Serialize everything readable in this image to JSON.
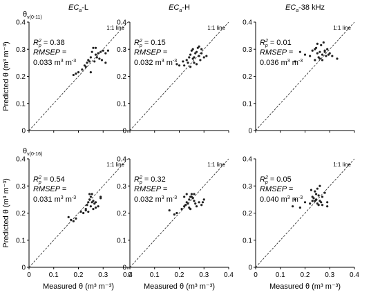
{
  "figure": {
    "row_labels": [
      {
        "main": "θ",
        "sub": "v(0-11)"
      },
      {
        "main": "θ",
        "sub": "v(0-16)"
      }
    ],
    "col_titles": [
      {
        "ec": "EC",
        "sub": "a",
        "rest": "-L"
      },
      {
        "ec": "EC",
        "sub": "a",
        "rest": "-H"
      },
      {
        "ec": "EC",
        "sub": "a",
        "rest": "-38 kHz"
      }
    ],
    "y_axis_label": "Predicted θ (m³ m⁻³)",
    "x_axis_label": "Measured θ (m³ m⁻³)",
    "one_to_one_label": "1:1 line",
    "r2_label": "R",
    "r2_sup": "2",
    "r2_sub": "p",
    "rmsep_label": "RMSEP =",
    "unit_text": "m",
    "unit_sup1": "3",
    "unit_mid": " m",
    "unit_sup2": "-3",
    "colors": {
      "point": "#222222",
      "axis": "#000000",
      "diag": "#333333"
    }
  },
  "chart_data": [
    {
      "type": "scatter",
      "panel": "a",
      "row": 0,
      "col": 0,
      "xlim": [
        0,
        0.4
      ],
      "ylim": [
        0,
        0.4
      ],
      "xticks": [
        "0",
        "0.1",
        "0.2",
        "0.3",
        "0.4"
      ],
      "yticks": [
        "0",
        "0.1",
        "0.2",
        "0.3",
        "0.4"
      ],
      "r2": "0.38",
      "rmsep": "0.033",
      "points": [
        [
          0.18,
          0.205
        ],
        [
          0.19,
          0.21
        ],
        [
          0.2,
          0.215
        ],
        [
          0.215,
          0.225
        ],
        [
          0.225,
          0.24
        ],
        [
          0.23,
          0.235
        ],
        [
          0.235,
          0.25
        ],
        [
          0.24,
          0.26
        ],
        [
          0.245,
          0.255
        ],
        [
          0.25,
          0.27
        ],
        [
          0.255,
          0.29
        ],
        [
          0.26,
          0.305
        ],
        [
          0.27,
          0.305
        ],
        [
          0.27,
          0.28
        ],
        [
          0.275,
          0.27
        ],
        [
          0.28,
          0.285
        ],
        [
          0.285,
          0.265
        ],
        [
          0.29,
          0.29
        ],
        [
          0.295,
          0.26
        ],
        [
          0.3,
          0.295
        ],
        [
          0.31,
          0.285
        ],
        [
          0.32,
          0.295
        ],
        [
          0.25,
          0.215
        ],
        [
          0.31,
          0.25
        ],
        [
          0.265,
          0.255
        ]
      ]
    },
    {
      "type": "scatter",
      "panel": "b",
      "row": 0,
      "col": 1,
      "xlim": [
        0,
        0.4
      ],
      "ylim": [
        0,
        0.4
      ],
      "xticks": [
        "0",
        "0.1",
        "0.2",
        "0.3",
        "0.4"
      ],
      "yticks": [
        "0",
        "0.1",
        "0.2",
        "0.3",
        "0.4"
      ],
      "r2": "0.15",
      "rmsep": "0.032",
      "points": [
        [
          0.19,
          0.245
        ],
        [
          0.2,
          0.24
        ],
        [
          0.215,
          0.255
        ],
        [
          0.22,
          0.24
        ],
        [
          0.23,
          0.26
        ],
        [
          0.235,
          0.25
        ],
        [
          0.24,
          0.27
        ],
        [
          0.245,
          0.28
        ],
        [
          0.25,
          0.295
        ],
        [
          0.255,
          0.3
        ],
        [
          0.26,
          0.27
        ],
        [
          0.265,
          0.285
        ],
        [
          0.27,
          0.29
        ],
        [
          0.275,
          0.305
        ],
        [
          0.28,
          0.275
        ],
        [
          0.285,
          0.26
        ],
        [
          0.29,
          0.285
        ],
        [
          0.3,
          0.27
        ],
        [
          0.31,
          0.275
        ],
        [
          0.26,
          0.25
        ],
        [
          0.27,
          0.245
        ],
        [
          0.28,
          0.31
        ],
        [
          0.245,
          0.235
        ],
        [
          0.29,
          0.3
        ],
        [
          0.255,
          0.265
        ]
      ]
    },
    {
      "type": "scatter",
      "panel": "c",
      "row": 0,
      "col": 2,
      "xlim": [
        0,
        0.4
      ],
      "ylim": [
        0,
        0.4
      ],
      "xticks": [
        "0",
        "0.1",
        "0.2",
        "0.3",
        "0.4"
      ],
      "yticks": [
        "0",
        "0.1",
        "0.2",
        "0.3",
        "0.4"
      ],
      "r2": "0.01",
      "rmsep": "0.036",
      "points": [
        [
          0.16,
          0.255
        ],
        [
          0.18,
          0.29
        ],
        [
          0.2,
          0.28
        ],
        [
          0.22,
          0.275
        ],
        [
          0.23,
          0.295
        ],
        [
          0.24,
          0.3
        ],
        [
          0.245,
          0.305
        ],
        [
          0.25,
          0.285
        ],
        [
          0.255,
          0.27
        ],
        [
          0.26,
          0.29
        ],
        [
          0.265,
          0.315
        ],
        [
          0.27,
          0.28
        ],
        [
          0.275,
          0.325
        ],
        [
          0.28,
          0.29
        ],
        [
          0.285,
          0.275
        ],
        [
          0.29,
          0.3
        ],
        [
          0.295,
          0.28
        ],
        [
          0.3,
          0.285
        ],
        [
          0.31,
          0.275
        ],
        [
          0.33,
          0.265
        ],
        [
          0.26,
          0.265
        ],
        [
          0.24,
          0.26
        ],
        [
          0.27,
          0.26
        ],
        [
          0.25,
          0.32
        ],
        [
          0.28,
          0.295
        ]
      ]
    },
    {
      "type": "scatter",
      "panel": "d",
      "row": 1,
      "col": 0,
      "xlim": [
        0,
        0.4
      ],
      "ylim": [
        0,
        0.4
      ],
      "xticks": [
        "0",
        "0.1",
        "0.2",
        "0.3",
        "0.4"
      ],
      "yticks": [
        "0",
        "0.1",
        "0.2",
        "0.3",
        "0.4"
      ],
      "r2": "0.54",
      "rmsep": "0.031",
      "points": [
        [
          0.16,
          0.185
        ],
        [
          0.17,
          0.175
        ],
        [
          0.18,
          0.17
        ],
        [
          0.19,
          0.18
        ],
        [
          0.21,
          0.205
        ],
        [
          0.22,
          0.2
        ],
        [
          0.23,
          0.215
        ],
        [
          0.235,
          0.23
        ],
        [
          0.24,
          0.24
        ],
        [
          0.245,
          0.25
        ],
        [
          0.25,
          0.26
        ],
        [
          0.255,
          0.27
        ],
        [
          0.26,
          0.245
        ],
        [
          0.265,
          0.235
        ],
        [
          0.27,
          0.22
        ],
        [
          0.28,
          0.225
        ],
        [
          0.29,
          0.26
        ],
        [
          0.29,
          0.255
        ],
        [
          0.245,
          0.27
        ],
        [
          0.25,
          0.225
        ],
        [
          0.24,
          0.205
        ],
        [
          0.255,
          0.24
        ],
        [
          0.26,
          0.215
        ],
        [
          0.23,
          0.21
        ],
        [
          0.27,
          0.24
        ]
      ]
    },
    {
      "type": "scatter",
      "panel": "e",
      "row": 1,
      "col": 1,
      "xlim": [
        0,
        0.4
      ],
      "ylim": [
        0,
        0.4
      ],
      "xticks": [
        "0",
        "0.1",
        "0.2",
        "0.3",
        "0.4"
      ],
      "yticks": [
        "0",
        "0.1",
        "0.2",
        "0.3",
        "0.4"
      ],
      "r2": "0.32",
      "rmsep": "0.032",
      "points": [
        [
          0.16,
          0.21
        ],
        [
          0.18,
          0.195
        ],
        [
          0.19,
          0.2
        ],
        [
          0.21,
          0.215
        ],
        [
          0.22,
          0.225
        ],
        [
          0.225,
          0.23
        ],
        [
          0.23,
          0.24
        ],
        [
          0.235,
          0.235
        ],
        [
          0.24,
          0.25
        ],
        [
          0.245,
          0.26
        ],
        [
          0.25,
          0.27
        ],
        [
          0.255,
          0.255
        ],
        [
          0.26,
          0.245
        ],
        [
          0.265,
          0.235
        ],
        [
          0.27,
          0.225
        ],
        [
          0.28,
          0.24
        ],
        [
          0.29,
          0.23
        ],
        [
          0.3,
          0.25
        ],
        [
          0.24,
          0.22
        ],
        [
          0.23,
          0.27
        ],
        [
          0.25,
          0.26
        ],
        [
          0.26,
          0.27
        ],
        [
          0.22,
          0.26
        ],
        [
          0.245,
          0.215
        ],
        [
          0.295,
          0.24
        ]
      ]
    },
    {
      "type": "scatter",
      "panel": "f",
      "row": 1,
      "col": 2,
      "xlim": [
        0,
        0.4
      ],
      "ylim": [
        0,
        0.4
      ],
      "xticks": [
        "0",
        "0.1",
        "0.2",
        "0.3",
        "0.4"
      ],
      "yticks": [
        "0",
        "0.1",
        "0.2",
        "0.3",
        "0.4"
      ],
      "r2": "0.05",
      "rmsep": "0.040",
      "points": [
        [
          0.15,
          0.225
        ],
        [
          0.16,
          0.25
        ],
        [
          0.18,
          0.22
        ],
        [
          0.2,
          0.24
        ],
        [
          0.22,
          0.235
        ],
        [
          0.225,
          0.285
        ],
        [
          0.23,
          0.26
        ],
        [
          0.235,
          0.255
        ],
        [
          0.24,
          0.28
        ],
        [
          0.245,
          0.27
        ],
        [
          0.25,
          0.29
        ],
        [
          0.255,
          0.265
        ],
        [
          0.26,
          0.245
        ],
        [
          0.265,
          0.24
        ],
        [
          0.27,
          0.23
        ],
        [
          0.28,
          0.275
        ],
        [
          0.29,
          0.24
        ],
        [
          0.29,
          0.225
        ],
        [
          0.24,
          0.245
        ],
        [
          0.25,
          0.235
        ],
        [
          0.26,
          0.3
        ],
        [
          0.23,
          0.245
        ],
        [
          0.245,
          0.25
        ],
        [
          0.255,
          0.23
        ],
        [
          0.27,
          0.26
        ]
      ]
    }
  ]
}
